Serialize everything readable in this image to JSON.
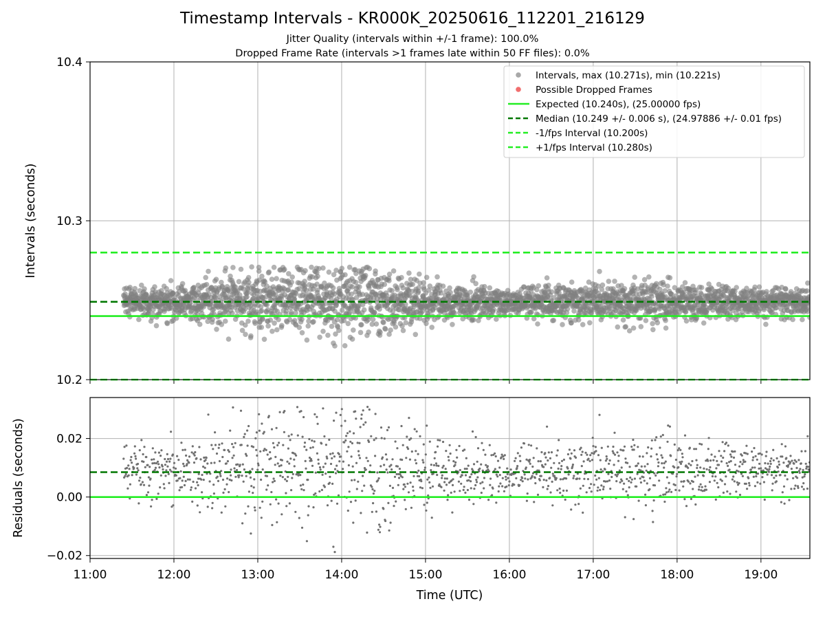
{
  "header": {
    "title": "Timestamp Intervals - KR000K_20250616_112201_216129",
    "subtitle_1": "Jitter Quality (intervals within +/-1 frame): 100.0%",
    "subtitle_2": "Dropped Frame Rate (intervals >1 frames late within 50 FF files): 0.0%"
  },
  "colors": {
    "points": "#808080",
    "dropped": "#ff5555",
    "expected": "#22ee22",
    "median": "#007700",
    "interval": "#22ee22",
    "grid": "#b0b0b0"
  },
  "chart_data": [
    {
      "type": "scatter",
      "panel": "intervals",
      "ylabel": "Intervals (seconds)",
      "xlabel": "",
      "xlim": [
        "11:00",
        "19:35"
      ],
      "ylim": [
        10.2,
        10.4
      ],
      "yticks": [
        "10.2",
        "10.3",
        "10.4"
      ],
      "xticks": [
        "11:00",
        "12:00",
        "13:00",
        "14:00",
        "15:00",
        "16:00",
        "17:00",
        "18:00",
        "19:00"
      ],
      "grid": true,
      "legend_position": "top-right",
      "legend": [
        {
          "label": "Intervals, max (10.271s), min (10.221s)",
          "kind": "dot",
          "color": "#999999"
        },
        {
          "label": "Possible Dropped Frames",
          "kind": "dot",
          "color": "#ee5555"
        },
        {
          "label": "Expected (10.240s), (25.00000 fps)",
          "kind": "solid",
          "color": "#22ee22"
        },
        {
          "label": "Median (10.249 +/- 0.006 s), (24.97886 +/- 0.01 fps)",
          "kind": "dashed",
          "color": "#007700"
        },
        {
          "label": "-1/fps Interval (10.200s)",
          "kind": "dashed",
          "color": "#22ee22"
        },
        {
          "label": "+1/fps Interval (10.280s)",
          "kind": "dashed",
          "color": "#22ee22"
        }
      ],
      "reference_lines": {
        "expected": 10.24,
        "median": 10.249,
        "lower_interval": 10.2,
        "upper_interval": 10.28
      },
      "series": [
        {
          "name": "Intervals, max (10.271s), min (10.221s)",
          "x_start": "11:24",
          "x_end": "19:35",
          "center": 10.249,
          "spread_by_time": [
            [
              "11:24",
              0.004
            ],
            [
              "12:30",
              0.007
            ],
            [
              "13:00",
              0.01
            ],
            [
              "14:00",
              0.012
            ],
            [
              "15:00",
              0.007
            ],
            [
              "16:00",
              0.004
            ],
            [
              "17:30",
              0.007
            ],
            [
              "18:30",
              0.005
            ],
            [
              "19:35",
              0.004
            ]
          ],
          "max": 10.271,
          "min": 10.221,
          "count": 2900
        },
        {
          "name": "Possible Dropped Frames",
          "values": []
        }
      ]
    },
    {
      "type": "scatter",
      "panel": "residuals",
      "ylabel": "Residuals (seconds)",
      "xlabel": "Time (UTC)",
      "xlim": [
        "11:00",
        "19:35"
      ],
      "ylim": [
        -0.021,
        0.034
      ],
      "yticks": [
        "−0.02",
        "0.00",
        "0.02"
      ],
      "ytick_values": [
        -0.02,
        0.0,
        0.02
      ],
      "xticks": [
        "11:00",
        "12:00",
        "13:00",
        "14:00",
        "15:00",
        "16:00",
        "17:00",
        "18:00",
        "19:00"
      ],
      "grid": true,
      "reference_lines": {
        "zero": 0.0,
        "median": 0.0085
      },
      "series": [
        {
          "name": "Residuals",
          "x_start": "11:24",
          "x_end": "19:35",
          "center": 0.0085,
          "max": 0.032,
          "min": -0.019,
          "count": 2900
        }
      ]
    }
  ]
}
